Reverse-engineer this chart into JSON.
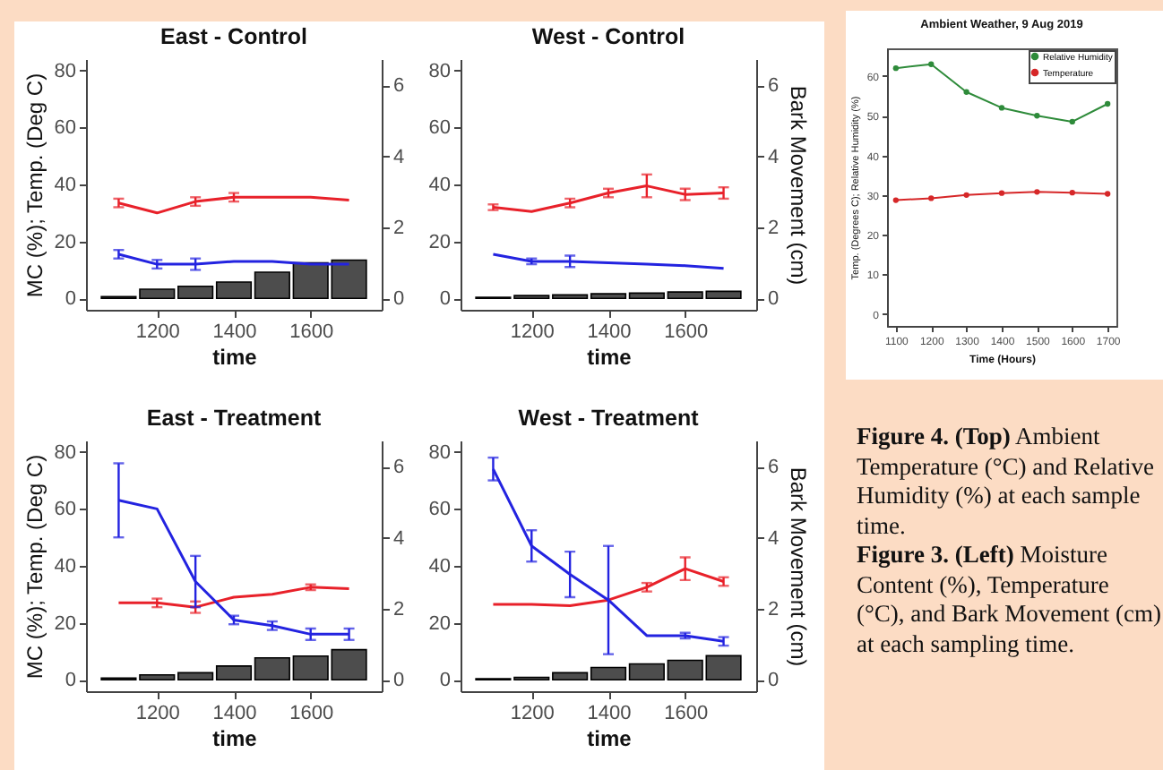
{
  "chart_data": [
    {
      "type": "line",
      "title": "East - Control",
      "ylabel": "MC (%); Temp. (Deg C)",
      "xlabel": "time",
      "x": [
        1100,
        1200,
        1300,
        1400,
        1500,
        1600,
        1700
      ],
      "xlim": [
        1015,
        1785
      ],
      "xticks": [
        1200,
        1400,
        1600
      ],
      "ylim": [
        -4,
        84
      ],
      "yticks": [
        0,
        20,
        40,
        60,
        80
      ],
      "y2lim": [
        -0.32,
        6.74
      ],
      "y2ticks": [
        0,
        2,
        4,
        6
      ],
      "series": [
        {
          "type": "bar",
          "axis": "y2",
          "color": "#4d4d4d",
          "values": [
            0.05,
            0.26,
            0.34,
            0.46,
            0.74,
            1.0,
            1.08
          ]
        },
        {
          "color": "#e8212a",
          "values": [
            33.5,
            30,
            34,
            35.5,
            35.5,
            35.5,
            34.5
          ],
          "errors": [
            1.5,
            null,
            1.5,
            1.5,
            null,
            null,
            null
          ]
        },
        {
          "color": "#2323e0",
          "values": [
            15.5,
            12,
            12,
            13,
            13,
            12,
            12
          ],
          "errors": [
            1.5,
            1.5,
            2,
            null,
            null,
            null,
            null
          ]
        }
      ]
    },
    {
      "type": "line",
      "title": "West - Control",
      "y2label": "Bark Movement (cm)",
      "xlabel": "time",
      "x": [
        1100,
        1200,
        1300,
        1400,
        1500,
        1600,
        1700
      ],
      "xlim": [
        1015,
        1785
      ],
      "xticks": [
        1200,
        1400,
        1600
      ],
      "ylim": [
        -4,
        84
      ],
      "yticks": [
        0,
        20,
        40,
        60,
        80
      ],
      "y2lim": [
        -0.32,
        6.74
      ],
      "y2ticks": [
        0,
        2,
        4,
        6
      ],
      "series": [
        {
          "type": "bar",
          "axis": "y2",
          "color": "#4d4d4d",
          "values": [
            0.03,
            0.08,
            0.1,
            0.13,
            0.15,
            0.18,
            0.2
          ]
        },
        {
          "color": "#e8212a",
          "values": [
            32,
            30.5,
            33.5,
            37,
            39.5,
            36.5,
            37
          ],
          "errors": [
            1,
            null,
            1.5,
            1.5,
            4,
            2,
            2
          ]
        },
        {
          "color": "#2323e0",
          "values": [
            15.5,
            13,
            13,
            12.5,
            12,
            11.5,
            10.5
          ],
          "errors": [
            null,
            1,
            2,
            null,
            null,
            null,
            null
          ]
        }
      ]
    },
    {
      "type": "line",
      "title": "East - Treatment",
      "ylabel": "MC (%); Temp. (Deg C)",
      "xlabel": "time",
      "x": [
        1100,
        1200,
        1300,
        1400,
        1500,
        1600,
        1700
      ],
      "xlim": [
        1015,
        1785
      ],
      "xticks": [
        1200,
        1400,
        1600
      ],
      "ylim": [
        -4,
        84
      ],
      "yticks": [
        0,
        20,
        40,
        60,
        80
      ],
      "y2lim": [
        -0.32,
        6.74
      ],
      "y2ticks": [
        0,
        2,
        4,
        6
      ],
      "series": [
        {
          "type": "bar",
          "axis": "y2",
          "color": "#4d4d4d",
          "values": [
            0.05,
            0.14,
            0.2,
            0.39,
            0.62,
            0.67,
            0.85
          ]
        },
        {
          "color": "#e8212a",
          "values": [
            27,
            27,
            25.5,
            29,
            30,
            32.5,
            32
          ],
          "errors": [
            null,
            1.5,
            2,
            null,
            null,
            1,
            null
          ]
        },
        {
          "color": "#2323e0",
          "values": [
            63,
            60,
            34.5,
            21,
            19,
            16,
            16
          ],
          "errors": [
            13,
            null,
            9,
            1.5,
            1.5,
            2,
            2
          ]
        }
      ]
    },
    {
      "type": "line",
      "title": "West - Treatment",
      "y2label": "Bark Movement (cm)",
      "xlabel": "time",
      "x": [
        1100,
        1200,
        1300,
        1400,
        1500,
        1600,
        1700
      ],
      "xlim": [
        1015,
        1785
      ],
      "xticks": [
        1200,
        1400,
        1600
      ],
      "ylim": [
        -4,
        84
      ],
      "yticks": [
        0,
        20,
        40,
        60,
        80
      ],
      "y2lim": [
        -0.32,
        6.74
      ],
      "y2ticks": [
        0,
        2,
        4,
        6
      ],
      "series": [
        {
          "type": "bar",
          "axis": "y2",
          "color": "#4d4d4d",
          "values": [
            0.03,
            0.07,
            0.2,
            0.35,
            0.45,
            0.55,
            0.68
          ]
        },
        {
          "color": "#e8212a",
          "values": [
            26.5,
            26.5,
            26,
            28,
            32.5,
            39,
            34.5
          ],
          "errors": [
            null,
            null,
            null,
            null,
            1.5,
            4,
            1.5
          ]
        },
        {
          "color": "#2323e0",
          "values": [
            74,
            47,
            37,
            28,
            15.5,
            15.5,
            13.5
          ],
          "errors": [
            4,
            5.5,
            8,
            19,
            null,
            1,
            1.5
          ]
        }
      ]
    },
    {
      "type": "line",
      "title": "Ambient Weather, 9 Aug 2019",
      "xlabel": "Time (Hours)",
      "ylabel": "Temp. (Degrees C); Relative Humidity (%)",
      "x": [
        1100,
        1200,
        1300,
        1400,
        1500,
        1600,
        1700
      ],
      "xlim": [
        1075,
        1725
      ],
      "xticks": [
        1100,
        1200,
        1300,
        1400,
        1500,
        1600,
        1700
      ],
      "ylim": [
        -3,
        67
      ],
      "yticks": [
        0,
        10,
        20,
        30,
        40,
        50,
        60
      ],
      "marker": "circle",
      "legend": "top right",
      "series": [
        {
          "name": "Relative Humidity",
          "color": "#2e8b3a",
          "values": [
            62,
            63,
            56,
            52,
            50,
            48.5,
            53
          ]
        },
        {
          "name": "Temperature",
          "color": "#d62728",
          "values": [
            28.7,
            29.2,
            30,
            30.5,
            30.8,
            30.6,
            30.3
          ]
        }
      ]
    },
    {
      "type": "other",
      "annotations": [
        "Figure 4. (Top) Ambient Temperature (°C) and Relative Humidity (%) at each sample time.",
        "Figure 3. (Left) Moisture Content (%), Temperature (°C), and Bark Movement (cm) at each sampling time."
      ]
    }
  ]
}
